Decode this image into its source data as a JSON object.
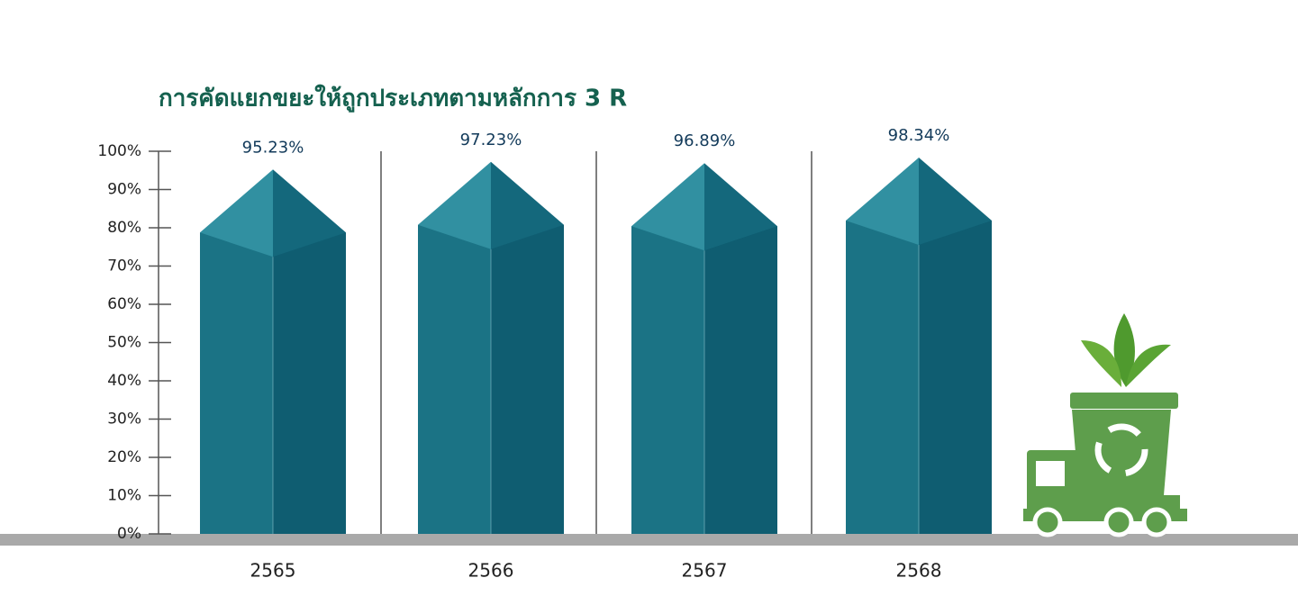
{
  "chart_data": {
    "type": "bar",
    "title": "การคัดแยกขยะให้ถูกประเภทตามหลักการ 3 R",
    "categories": [
      "2565",
      "2566",
      "2567",
      "2568"
    ],
    "values": [
      95.23,
      97.23,
      96.89,
      98.34
    ],
    "value_labels": [
      "95.23%",
      "97.23%",
      "96.89%",
      "98.34%"
    ],
    "color": "#1b7385",
    "ylim": [
      0,
      100
    ],
    "yticks": [
      {
        "value": 0,
        "label": "0%"
      },
      {
        "value": 10,
        "label": "10%"
      },
      {
        "value": 20,
        "label": "20%"
      },
      {
        "value": 30,
        "label": "30%"
      },
      {
        "value": 40,
        "label": "40%"
      },
      {
        "value": 50,
        "label": "50%"
      },
      {
        "value": 60,
        "label": "60%"
      },
      {
        "value": 70,
        "label": "70%"
      },
      {
        "value": 80,
        "label": "80%"
      },
      {
        "value": 90,
        "label": "90%"
      },
      {
        "value": 100,
        "label": "100%"
      }
    ]
  }
}
